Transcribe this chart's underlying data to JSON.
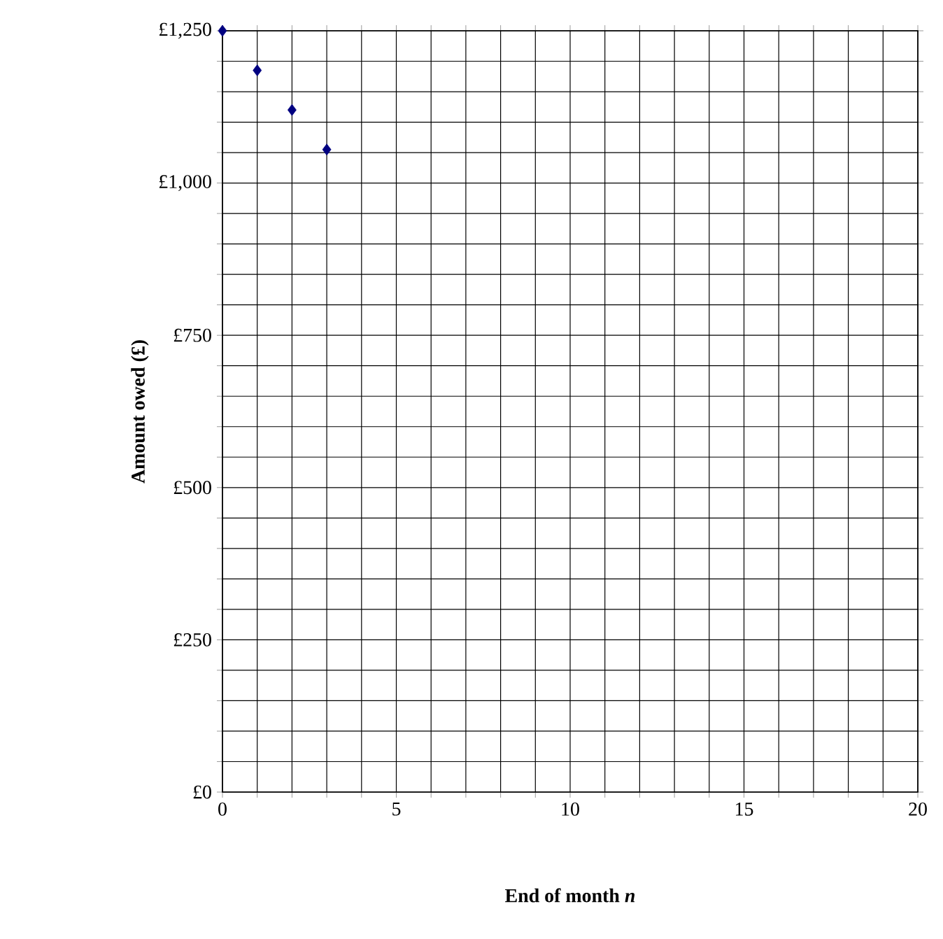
{
  "chart_data": {
    "type": "scatter",
    "xlabel": "End of month *n*",
    "ylabel": "Amount owed (£)",
    "x": [
      0,
      1,
      2,
      3
    ],
    "series": [
      {
        "color": "#000080",
        "values": [
          1250,
          1185,
          1120,
          1055
        ]
      }
    ],
    "marker": "diamond",
    "grid": true,
    "xlim": [
      0,
      20
    ],
    "ylim": [
      0,
      1250
    ],
    "xticks": [
      0,
      {
        "value": 1,
        "label": null
      },
      {
        "value": 2,
        "label": null
      },
      {
        "value": 3,
        "label": null
      },
      {
        "value": 4,
        "label": null
      },
      5,
      {
        "value": 6,
        "label": null
      },
      {
        "value": 7,
        "label": null
      },
      {
        "value": 8,
        "label": null
      },
      {
        "value": 9,
        "label": null
      },
      10,
      {
        "value": 11,
        "label": null
      },
      {
        "value": 12,
        "label": null
      },
      {
        "value": 13,
        "label": null
      },
      {
        "value": 14,
        "label": null
      },
      15,
      {
        "value": 16,
        "label": null
      },
      {
        "value": 17,
        "label": null
      },
      {
        "value": 18,
        "label": null
      },
      {
        "value": 19,
        "label": null
      },
      20
    ],
    "yticks": [
      {
        "value": 0,
        "label": "£0"
      },
      {
        "value": 50,
        "label": null
      },
      {
        "value": 100,
        "label": null
      },
      {
        "value": 150,
        "label": null
      },
      {
        "value": 200,
        "label": null
      },
      {
        "value": 250,
        "label": "£250"
      },
      {
        "value": 300,
        "label": null
      },
      {
        "value": 350,
        "label": null
      },
      {
        "value": 400,
        "label": null
      },
      {
        "value": 450,
        "label": null
      },
      {
        "value": 500,
        "label": "£500"
      },
      {
        "value": 550,
        "label": null
      },
      {
        "value": 600,
        "label": null
      },
      {
        "value": 650,
        "label": null
      },
      {
        "value": 700,
        "label": null
      },
      {
        "value": 750,
        "label": "£750"
      },
      {
        "value": 800,
        "label": null
      },
      {
        "value": 850,
        "label": null
      },
      {
        "value": 900,
        "label": null
      },
      {
        "value": 950,
        "label": null
      },
      {
        "value": 1000,
        "label": "£1,000"
      },
      {
        "value": 1050,
        "label": null
      },
      {
        "value": 1100,
        "label": null
      },
      {
        "value": 1150,
        "label": null
      },
      {
        "value": 1200,
        "label": null
      },
      {
        "value": 1250,
        "label": "£1,250"
      }
    ]
  }
}
